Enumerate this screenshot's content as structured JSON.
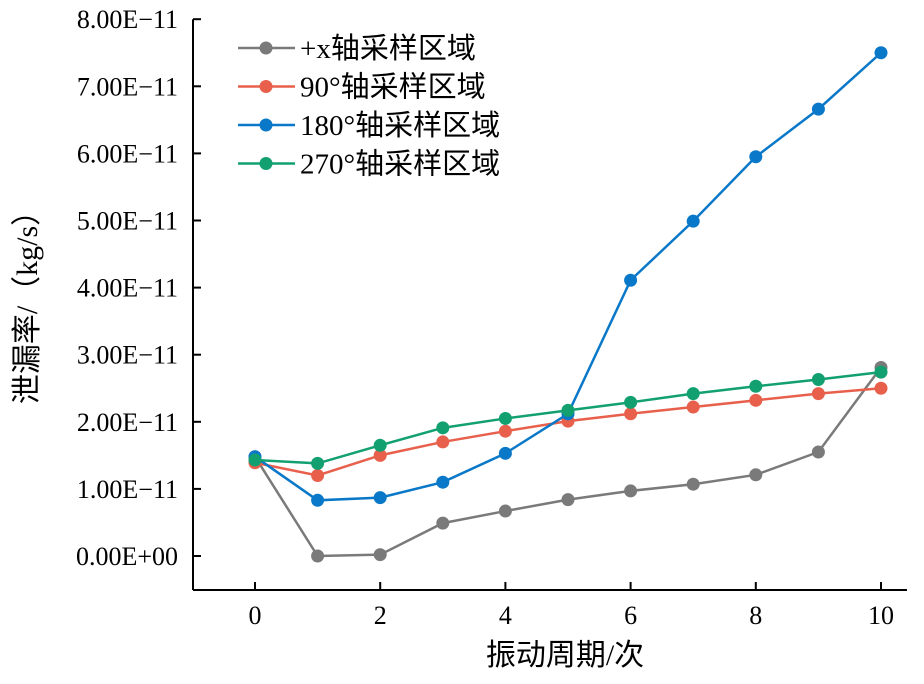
{
  "chart_data": {
    "type": "line",
    "title": "",
    "xlabel": "振动周期/次",
    "ylabel": "泄漏率/（kg/s）",
    "xlim": [
      -1,
      10.4
    ],
    "ylim": [
      -0.5,
      8.0
    ],
    "x_ticks": [
      0,
      2,
      4,
      6,
      8,
      10
    ],
    "x_tick_labels": [
      "0",
      "2",
      "4",
      "6",
      "8",
      "10"
    ],
    "y_ticks": [
      0,
      1,
      2,
      3,
      4,
      5,
      6,
      7,
      8
    ],
    "y_tick_labels": [
      "0.00E+00",
      "1.00E−11",
      "2.00E−11",
      "3.00E−11",
      "4.00E−11",
      "5.00E−11",
      "6.00E−11",
      "7.00E−11",
      "8.00E−11"
    ],
    "y_unit_note": "values in units of 1E-11 kg/s",
    "legend_position": "top-left",
    "grid": false,
    "x": [
      0,
      1,
      2,
      3,
      4,
      5,
      6,
      7,
      8,
      9,
      10
    ],
    "series": [
      {
        "name": "+x轴采样区域",
        "color": "#7a7a7a",
        "values": [
          1.48,
          0.0,
          0.02,
          0.49,
          0.67,
          0.84,
          0.97,
          1.07,
          1.21,
          1.55,
          2.81
        ]
      },
      {
        "name": "90°轴采样区域",
        "color": "#e8604c",
        "values": [
          1.39,
          1.2,
          1.5,
          1.7,
          1.86,
          2.01,
          2.12,
          2.22,
          2.32,
          2.42,
          2.5
        ]
      },
      {
        "name": "180°轴采样区域",
        "color": "#0a78c8",
        "values": [
          1.48,
          0.83,
          0.87,
          1.1,
          1.53,
          2.12,
          4.11,
          4.99,
          5.95,
          6.66,
          7.5
        ]
      },
      {
        "name": "270°轴采样区域",
        "color": "#12a070",
        "values": [
          1.43,
          1.38,
          1.65,
          1.91,
          2.05,
          2.17,
          2.29,
          2.42,
          2.53,
          2.63,
          2.74
        ]
      }
    ]
  }
}
